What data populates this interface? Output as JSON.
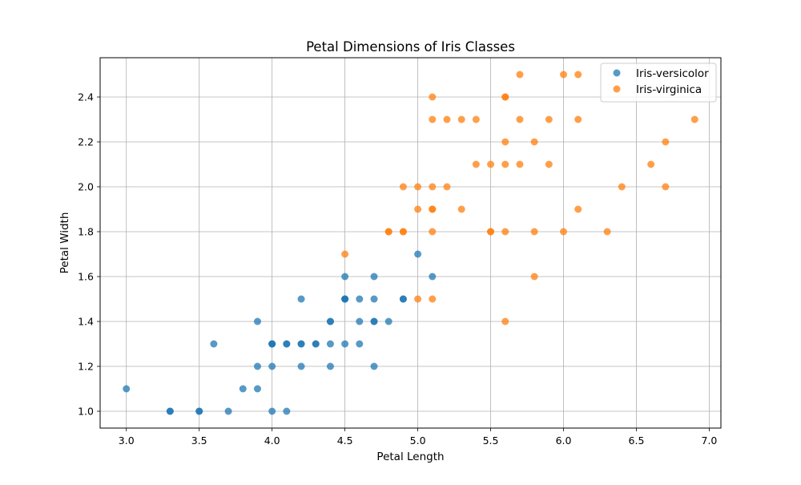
{
  "chart_data": {
    "type": "scatter",
    "title": "Petal Dimensions of Iris Classes",
    "xlabel": "Petal Length",
    "ylabel": "Petal Width",
    "xlim": [
      2.82,
      7.08
    ],
    "ylim": [
      0.925,
      2.575
    ],
    "xticks": [
      3.0,
      3.5,
      4.0,
      4.5,
      5.0,
      5.5,
      6.0,
      6.5,
      7.0
    ],
    "xtick_labels": [
      "3.0",
      "3.5",
      "4.0",
      "4.5",
      "5.0",
      "5.5",
      "6.0",
      "6.5",
      "7.0"
    ],
    "yticks": [
      1.0,
      1.2,
      1.4,
      1.6,
      1.8,
      2.0,
      2.2,
      2.4
    ],
    "ytick_labels": [
      "1.0",
      "1.2",
      "1.4",
      "1.6",
      "1.8",
      "2.0",
      "2.2",
      "2.4"
    ],
    "grid": true,
    "legend_position": "top-right",
    "series": [
      {
        "name": "Iris-versicolor",
        "color": "#1f77b4",
        "points": [
          [
            3.0,
            1.1
          ],
          [
            3.3,
            1.0
          ],
          [
            3.3,
            1.0
          ],
          [
            3.5,
            1.0
          ],
          [
            3.5,
            1.0
          ],
          [
            3.6,
            1.3
          ],
          [
            3.7,
            1.0
          ],
          [
            3.8,
            1.1
          ],
          [
            3.9,
            1.4
          ],
          [
            3.9,
            1.2
          ],
          [
            3.9,
            1.1
          ],
          [
            4.0,
            1.3
          ],
          [
            4.0,
            1.3
          ],
          [
            4.0,
            1.3
          ],
          [
            4.0,
            1.2
          ],
          [
            4.0,
            1.0
          ],
          [
            4.1,
            1.3
          ],
          [
            4.1,
            1.3
          ],
          [
            4.1,
            1.0
          ],
          [
            4.2,
            1.5
          ],
          [
            4.2,
            1.3
          ],
          [
            4.2,
            1.3
          ],
          [
            4.2,
            1.2
          ],
          [
            4.3,
            1.3
          ],
          [
            4.3,
            1.3
          ],
          [
            4.4,
            1.4
          ],
          [
            4.4,
            1.4
          ],
          [
            4.4,
            1.3
          ],
          [
            4.4,
            1.2
          ],
          [
            4.5,
            1.6
          ],
          [
            4.5,
            1.5
          ],
          [
            4.5,
            1.5
          ],
          [
            4.5,
            1.5
          ],
          [
            4.5,
            1.3
          ],
          [
            4.6,
            1.5
          ],
          [
            4.6,
            1.4
          ],
          [
            4.6,
            1.3
          ],
          [
            4.7,
            1.6
          ],
          [
            4.7,
            1.5
          ],
          [
            4.7,
            1.4
          ],
          [
            4.7,
            1.4
          ],
          [
            4.7,
            1.2
          ],
          [
            4.8,
            1.4
          ],
          [
            4.9,
            1.5
          ],
          [
            4.9,
            1.5
          ],
          [
            5.0,
            1.7
          ],
          [
            5.1,
            1.6
          ]
        ]
      },
      {
        "name": "Iris-virginica",
        "color": "#ff7f0e",
        "points": [
          [
            4.5,
            1.7
          ],
          [
            4.8,
            1.8
          ],
          [
            4.8,
            1.8
          ],
          [
            4.9,
            2.0
          ],
          [
            4.9,
            1.8
          ],
          [
            4.9,
            1.8
          ],
          [
            5.0,
            2.0
          ],
          [
            5.0,
            1.9
          ],
          [
            5.0,
            1.5
          ],
          [
            5.1,
            2.4
          ],
          [
            5.1,
            2.3
          ],
          [
            5.1,
            2.0
          ],
          [
            5.1,
            1.9
          ],
          [
            5.1,
            1.9
          ],
          [
            5.1,
            1.8
          ],
          [
            5.1,
            1.5
          ],
          [
            5.2,
            2.3
          ],
          [
            5.2,
            2.0
          ],
          [
            5.3,
            2.3
          ],
          [
            5.3,
            1.9
          ],
          [
            5.4,
            2.3
          ],
          [
            5.4,
            2.1
          ],
          [
            5.5,
            2.1
          ],
          [
            5.5,
            1.8
          ],
          [
            5.5,
            1.8
          ],
          [
            5.6,
            2.4
          ],
          [
            5.6,
            2.4
          ],
          [
            5.6,
            2.2
          ],
          [
            5.6,
            2.1
          ],
          [
            5.6,
            1.8
          ],
          [
            5.6,
            1.4
          ],
          [
            5.7,
            2.5
          ],
          [
            5.7,
            2.3
          ],
          [
            5.7,
            2.1
          ],
          [
            5.8,
            2.2
          ],
          [
            5.8,
            1.8
          ],
          [
            5.8,
            1.6
          ],
          [
            5.9,
            2.3
          ],
          [
            5.9,
            2.1
          ],
          [
            6.0,
            2.5
          ],
          [
            6.0,
            1.8
          ],
          [
            6.1,
            2.5
          ],
          [
            6.1,
            2.3
          ],
          [
            6.1,
            1.9
          ],
          [
            6.3,
            1.8
          ],
          [
            6.4,
            2.0
          ],
          [
            6.6,
            2.1
          ],
          [
            6.7,
            2.2
          ],
          [
            6.7,
            2.0
          ],
          [
            6.9,
            2.3
          ]
        ]
      }
    ]
  }
}
